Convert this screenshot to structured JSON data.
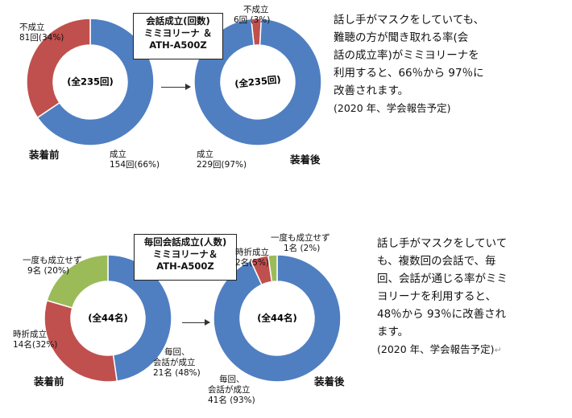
{
  "colors": {
    "blue": "#4f7fc1",
    "red": "#c0504d",
    "green": "#9bbb59",
    "stroke": "#ffffff"
  },
  "chart_data": [
    {
      "type": "pie",
      "subtype": "donut",
      "title": "会話成立(回数)",
      "title_lines": [
        "会話成立(回数)",
        "ミミヨリーナ ＆",
        "ATH-A500Z"
      ],
      "charts": [
        {
          "state": "装着前",
          "center": "(全235回)",
          "slices": [
            {
              "label": "成立",
              "value_text": "154回(66%)",
              "value": 154,
              "percent": 66,
              "color": "#4f7fc1"
            },
            {
              "label": "不成立",
              "value_text": "81回(34%)",
              "value": 81,
              "percent": 34,
              "color": "#c0504d"
            }
          ]
        },
        {
          "state": "装着後",
          "center": "(全235回)",
          "slices": [
            {
              "label": "成立",
              "value_text": "229回(97%)",
              "value": 229,
              "percent": 97,
              "color": "#4f7fc1"
            },
            {
              "label": "不成立",
              "value_text": "6回 (3%)",
              "value": 6,
              "percent": 3,
              "color": "#c0504d"
            }
          ]
        }
      ]
    },
    {
      "type": "pie",
      "subtype": "donut",
      "title": "毎回会話成立(人数)",
      "title_lines": [
        "毎回会話成立(人数)",
        "ミミヨリーナ＆",
        "ATH-A500Z"
      ],
      "charts": [
        {
          "state": "装着前",
          "center": "(全44名)",
          "slices": [
            {
              "label": "毎回、会話が成立",
              "label_lines": [
                "毎回、",
                "会話が成立"
              ],
              "value_text": "21名 (48%)",
              "value": 21,
              "percent": 48,
              "color": "#4f7fc1"
            },
            {
              "label": "時折成立",
              "label_lines": [
                "時折成立"
              ],
              "value_text": "14名(32%)",
              "value": 14,
              "percent": 32,
              "color": "#c0504d"
            },
            {
              "label": "一度も成立せず",
              "label_lines": [
                "一度も成立せず"
              ],
              "value_text": "9名 (20%)",
              "value": 9,
              "percent": 20,
              "color": "#9bbb59"
            }
          ]
        },
        {
          "state": "装着後",
          "center": "(全44名)",
          "slices": [
            {
              "label": "毎回、会話が成立",
              "label_lines": [
                "毎回、",
                "会話が成立"
              ],
              "value_text": "41名 (93%)",
              "value": 41,
              "percent": 93,
              "color": "#4f7fc1"
            },
            {
              "label": "時折成立",
              "label_lines": [
                "時折成立"
              ],
              "value_text": "2名(5%)",
              "value": 2,
              "percent": 5,
              "color": "#c0504d"
            },
            {
              "label": "一度も成立せず",
              "label_lines": [
                "一度も成立せず"
              ],
              "value_text": "1名 (2%)",
              "value": 1,
              "percent": 2,
              "color": "#9bbb59"
            }
          ]
        }
      ]
    }
  ],
  "text": {
    "top": [
      "話し手がマスクをしていても、",
      "難聴の方が聞き取れる率(会",
      "話の成立率)がミミヨリーナを",
      "利用すると、66％から 97％に",
      "改善されます。"
    ],
    "top_note": "(2020 年、学会報告予定)",
    "bottom": [
      "話し手がマスクをしていて",
      "も、複数回の会話で、毎",
      "回、会話が通じる率がミミ",
      "ヨリーナを利用すると、",
      "48％から 93％に改善され",
      "ます。"
    ],
    "bottom_note": "(2020 年、学会報告予定)",
    "return_mark": "↵"
  }
}
